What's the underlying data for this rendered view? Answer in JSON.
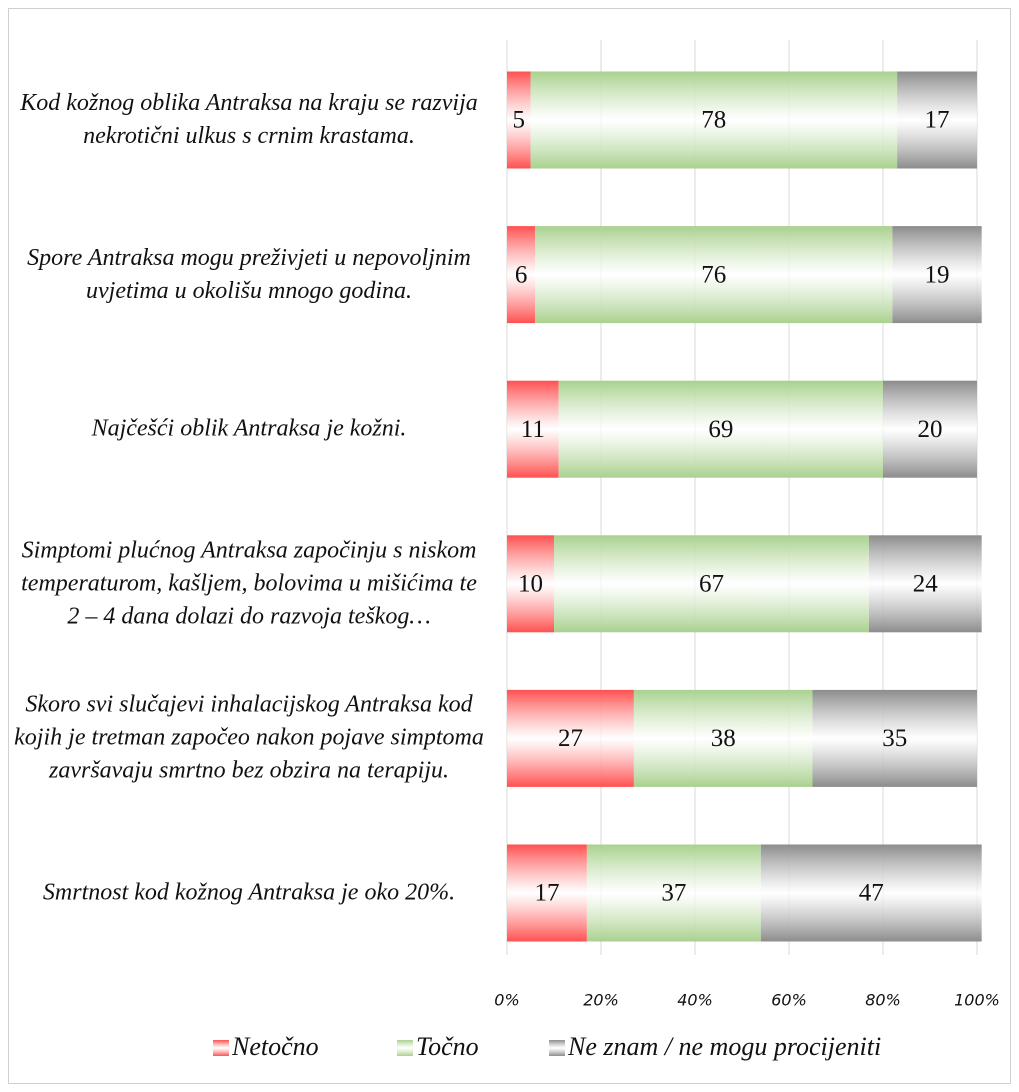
{
  "chart_data": {
    "type": "bar",
    "orientation": "horizontal",
    "stacked": true,
    "categories": [
      "Kod kožnog oblika Antraksa na kraju se razvija nekrotični ulkus s crnim krastama.",
      "Spore Antraksa mogu preživjeti u nepovoljnim uvjetima u okolišu mnogo godina.",
      "Najčešći oblik Antraksa je kožni.",
      "Simptomi plućnog Antraksa započinju s niskom temperaturom, kašljem, bolovima u mišićima te 2 – 4 dana dolazi do razvoja teškog…",
      "Skoro svi slučajevi inhalacijskog Antraksa kod kojih je tretman započeo nakon pojave simptoma završavaju smrtno bez obzira na terapiju.",
      "Smrtnost kod kožnog Antraksa je oko 20%."
    ],
    "series": [
      {
        "name": "Netočno",
        "color": "#ff5050",
        "values": [
          5,
          6,
          11,
          10,
          27,
          17
        ]
      },
      {
        "name": "Točno",
        "color": "#a9d18e",
        "values": [
          78,
          76,
          69,
          67,
          38,
          37
        ]
      },
      {
        "name": "Ne znam / ne mogu procijeniti",
        "color": "#8c8c8c",
        "values": [
          17,
          19,
          20,
          24,
          35,
          47
        ]
      }
    ],
    "xlim": [
      0,
      100
    ],
    "xticks": [
      {
        "value": 0,
        "label": "0%"
      },
      {
        "value": 20,
        "label": "20%"
      },
      {
        "value": 40,
        "label": "40%"
      },
      {
        "value": 60,
        "label": "60%"
      },
      {
        "value": 80,
        "label": "80%"
      },
      {
        "value": 100,
        "label": "100%"
      }
    ],
    "grid": true,
    "legend": "bottom"
  }
}
